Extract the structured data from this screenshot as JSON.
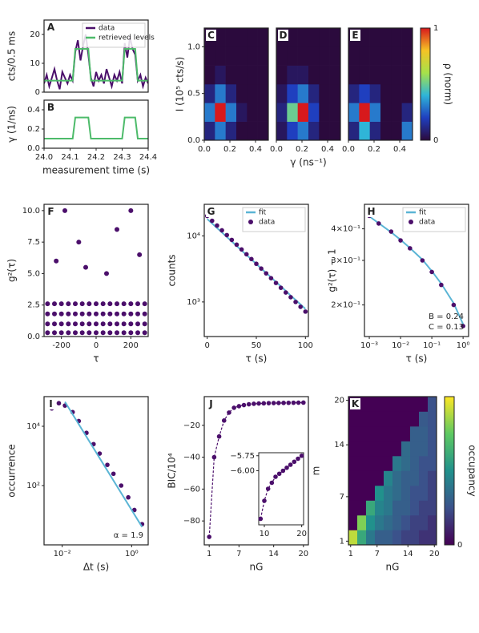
{
  "chart_data": [
    {
      "type": "line",
      "label": "A",
      "ylabel": "cts/0.5 ms",
      "xlim": [
        24.0,
        24.4
      ],
      "ylim": [
        0,
        25
      ],
      "yticks": [
        0,
        10,
        20
      ],
      "legend": true,
      "x": [
        24.0,
        24.01,
        24.02,
        24.03,
        24.04,
        24.05,
        24.06,
        24.07,
        24.08,
        24.09,
        24.1,
        24.11,
        24.12,
        24.13,
        24.14,
        24.15,
        24.16,
        24.17,
        24.18,
        24.19,
        24.2,
        24.21,
        24.22,
        24.23,
        24.24,
        24.25,
        24.26,
        24.27,
        24.28,
        24.29,
        24.3,
        24.31,
        24.32,
        24.33,
        24.34,
        24.35,
        24.36,
        24.37,
        24.38,
        24.39,
        24.4
      ],
      "series": [
        {
          "name": "data",
          "color": "#4b0f6b",
          "values": [
            3,
            6,
            2,
            5,
            8,
            4,
            1,
            7,
            5,
            3,
            6,
            4,
            14,
            18,
            11,
            16,
            20,
            13,
            5,
            2,
            7,
            4,
            6,
            3,
            8,
            5,
            2,
            6,
            4,
            7,
            3,
            17,
            12,
            19,
            15,
            13,
            4,
            6,
            2,
            5,
            3
          ]
        },
        {
          "name": "retrieved levels",
          "color": "#4dbb6a",
          "values": [
            4,
            4,
            4,
            4,
            4,
            4,
            4,
            4,
            4,
            4,
            4,
            4,
            15,
            15,
            15,
            15,
            15,
            15,
            4,
            4,
            4,
            4,
            4,
            4,
            4,
            4,
            4,
            4,
            4,
            4,
            4,
            15,
            15,
            15,
            15,
            15,
            4,
            4,
            4,
            4,
            4
          ]
        }
      ]
    },
    {
      "type": "line",
      "label": "B",
      "ylabel": "γ (1/ns)",
      "xlabel": "measurement time (s)",
      "xlim": [
        24.0,
        24.4
      ],
      "ylim": [
        0,
        0.5
      ],
      "xticks": [
        {
          "value": 24.0,
          "label": "24.0"
        },
        24.1,
        24.2,
        24.3,
        24.4
      ],
      "yticks": [
        {
          "value": 0,
          "label": "0.0"
        },
        0.2,
        0.4
      ],
      "x": [
        24.0,
        24.01,
        24.02,
        24.03,
        24.04,
        24.05,
        24.06,
        24.07,
        24.08,
        24.09,
        24.1,
        24.11,
        24.12,
        24.13,
        24.14,
        24.15,
        24.16,
        24.17,
        24.18,
        24.19,
        24.2,
        24.21,
        24.22,
        24.23,
        24.24,
        24.25,
        24.26,
        24.27,
        24.28,
        24.29,
        24.3,
        24.31,
        24.32,
        24.33,
        24.34,
        24.35,
        24.36,
        24.37,
        24.38,
        24.39,
        24.4
      ],
      "series": [
        {
          "color": "#4dbb6a",
          "values": [
            0.1,
            0.1,
            0.1,
            0.1,
            0.1,
            0.1,
            0.1,
            0.1,
            0.1,
            0.1,
            0.1,
            0.1,
            0.32,
            0.32,
            0.32,
            0.32,
            0.32,
            0.32,
            0.1,
            0.1,
            0.1,
            0.1,
            0.1,
            0.1,
            0.1,
            0.1,
            0.1,
            0.1,
            0.1,
            0.1,
            0.1,
            0.32,
            0.32,
            0.32,
            0.32,
            0.32,
            0.1,
            0.1,
            0.1,
            0.1,
            0.1
          ]
        }
      ]
    },
    {
      "type": "heatmap",
      "label": "C",
      "ylabel": "I (10⁵ cts/s)",
      "xlim": [
        0,
        0.5
      ],
      "ylim": [
        0,
        1.2
      ],
      "xticks": [
        {
          "value": 0,
          "label": "0.0"
        },
        0.2,
        0.4
      ],
      "yticks": [
        {
          "value": 0,
          "label": "0.0"
        },
        0.5,
        {
          "value": 1,
          "label": "1.0"
        }
      ],
      "colorscale": [
        "#2b0a3d",
        "#1f3fbf",
        "#2fb5d8",
        "#a6e24a",
        "#f5c325",
        "#d7191c"
      ],
      "z": [
        [
          0.1,
          0.3,
          0.1,
          0,
          0,
          0
        ],
        [
          0.3,
          1,
          0.3,
          0.05,
          0,
          0
        ],
        [
          0.1,
          0.3,
          0.1,
          0,
          0,
          0
        ],
        [
          0,
          0.05,
          0,
          0,
          0,
          0
        ],
        [
          0,
          0,
          0,
          0,
          0,
          0
        ],
        [
          0,
          0,
          0,
          0,
          0,
          0
        ]
      ]
    },
    {
      "type": "heatmap",
      "label": "D",
      "xlabel": "γ (ns⁻¹)",
      "xlim": [
        0,
        0.5
      ],
      "ylim": [
        0,
        1.2
      ],
      "xticks": [
        {
          "value": 0,
          "label": "0.0"
        },
        0.2,
        0.4
      ],
      "colorscale": [
        "#2b0a3d",
        "#1f3fbf",
        "#2fb5d8",
        "#a6e24a",
        "#f5c325",
        "#d7191c"
      ],
      "z": [
        [
          0.05,
          0.2,
          0.3,
          0.1,
          0,
          0
        ],
        [
          0.1,
          0.5,
          1,
          0.2,
          0,
          0
        ],
        [
          0.05,
          0.2,
          0.3,
          0.1,
          0,
          0
        ],
        [
          0,
          0.05,
          0.05,
          0,
          0,
          0
        ],
        [
          0,
          0,
          0,
          0,
          0,
          0
        ],
        [
          0,
          0,
          0,
          0,
          0,
          0
        ]
      ]
    },
    {
      "type": "heatmap",
      "label": "E",
      "xlim": [
        0,
        0.5
      ],
      "ylim": [
        0,
        1.2
      ],
      "xticks": [
        {
          "value": 0,
          "label": "0.0"
        },
        0.2,
        0.4
      ],
      "colorscale": [
        "#2b0a3d",
        "#1f3fbf",
        "#2fb5d8",
        "#a6e24a",
        "#f5c325",
        "#d7191c"
      ],
      "colorbar": {
        "label": "ρ (norm)",
        "ticks": [
          0,
          1
        ]
      },
      "z": [
        [
          0.1,
          0.4,
          0.1,
          0,
          0,
          0.3
        ],
        [
          0.3,
          1,
          0.3,
          0,
          0,
          0.1
        ],
        [
          0.1,
          0.2,
          0.1,
          0,
          0,
          0
        ],
        [
          0,
          0,
          0,
          0,
          0,
          0
        ],
        [
          0,
          0,
          0,
          0,
          0,
          0
        ],
        [
          0,
          0,
          0,
          0,
          0,
          0
        ]
      ]
    },
    {
      "type": "scatter",
      "label": "F",
      "xlabel": "τ",
      "ylabel": "g²(τ)",
      "xlim": [
        -300,
        300
      ],
      "ylim": [
        0,
        10.5
      ],
      "color": "#4b0f6b",
      "xticks": [
        -200,
        0,
        200
      ],
      "yticks": [
        {
          "value": 0,
          "label": "0.0"
        },
        2.5,
        {
          "value": 5,
          "label": "5.0"
        },
        7.5,
        {
          "value": 10,
          "label": "10.0"
        }
      ],
      "x": [
        -280,
        -240,
        -200,
        -160,
        -120,
        -80,
        -40,
        0,
        40,
        80,
        120,
        160,
        200,
        240,
        280,
        -280,
        -240,
        -200,
        -160,
        -120,
        -80,
        -40,
        0,
        40,
        80,
        120,
        160,
        200,
        240,
        280,
        -280,
        -240,
        -200,
        -160,
        -120,
        -80,
        -40,
        0,
        40,
        80,
        120,
        160,
        200,
        240,
        280,
        -280,
        -240,
        -200,
        -160,
        -120,
        -80,
        -40,
        0,
        40,
        80,
        120,
        160,
        200,
        240,
        280,
        -180,
        -100,
        -230,
        120,
        200,
        60,
        -60,
        250
      ],
      "values": [
        0.3,
        0.3,
        0.3,
        0.3,
        0.3,
        0.3,
        0.3,
        0.3,
        0.3,
        0.3,
        0.3,
        0.3,
        0.3,
        0.3,
        0.3,
        1,
        1,
        1,
        1,
        1,
        1,
        1,
        1,
        1,
        1,
        1,
        1,
        1,
        1,
        1,
        1.8,
        1.8,
        1.8,
        1.8,
        1.8,
        1.8,
        1.8,
        1.8,
        1.8,
        1.8,
        1.8,
        1.8,
        1.8,
        1.8,
        1.8,
        2.6,
        2.6,
        2.6,
        2.6,
        2.6,
        2.6,
        2.6,
        2.6,
        2.6,
        2.6,
        2.6,
        2.6,
        2.6,
        2.6,
        2.6,
        10,
        7.5,
        6,
        8.5,
        10,
        5,
        5.5,
        6.5
      ]
    },
    {
      "type": "line",
      "label": "G",
      "xlabel": "τ (s)",
      "ylabel": "counts",
      "xlim": [
        -3,
        103
      ],
      "ylim": [
        300,
        30000
      ],
      "ylog": true,
      "legend": true,
      "xticks": [
        0,
        50,
        100
      ],
      "yticks": [
        {
          "value": 1000,
          "label": "10³"
        },
        {
          "value": 10000,
          "label": "10⁴"
        }
      ],
      "x": [
        0,
        5,
        10,
        15,
        20,
        25,
        30,
        35,
        40,
        45,
        50,
        55,
        60,
        65,
        70,
        75,
        80,
        85,
        90,
        95,
        100
      ],
      "series": [
        {
          "name": "fit",
          "color": "#5bb5d5",
          "values": [
            18000,
            15390,
            13160,
            11250,
            9620,
            8230,
            7030,
            6010,
            5140,
            4400,
            3760,
            3210,
            2750,
            2350,
            2010,
            1720,
            1470,
            1250,
            1070,
            920,
            785
          ]
        },
        {
          "name": "data",
          "color": "#4b0f6b",
          "mode": "markers",
          "values": [
            20000,
            16930,
            14330,
            12130,
            10270,
            8690,
            7360,
            6230,
            5270,
            4460,
            3780,
            3200,
            2710,
            2290,
            1940,
            1640,
            1390,
            1180,
            1000,
            845,
            715
          ]
        }
      ]
    },
    {
      "type": "line",
      "label": "H",
      "xlabel": "τ (s)",
      "ylabel": "g²(τ) − 1",
      "xlim": [
        0.0007,
        1.5
      ],
      "ylim": [
        0.15,
        0.5
      ],
      "xlog": true,
      "ylog": true,
      "legend": true,
      "xticks": [
        {
          "value": 0.001,
          "label": "10⁻³"
        },
        {
          "value": 0.01,
          "label": "10⁻²"
        },
        {
          "value": 0.1,
          "label": "10⁻¹"
        },
        {
          "value": 1,
          "label": "10⁰"
        }
      ],
      "yticks": [
        {
          "value": 0.2,
          "label": "2×10⁻¹"
        },
        {
          "value": 0.3,
          "label": "3×10⁻¹"
        },
        {
          "value": 0.4,
          "label": "4×10⁻¹"
        }
      ],
      "annotations": [
        "B = 0.24",
        "C = 0.13"
      ],
      "x": [
        0.001,
        0.002,
        0.005,
        0.01,
        0.02,
        0.05,
        0.1,
        0.2,
        0.5,
        1
      ],
      "series": [
        {
          "name": "fit",
          "color": "#5bb5d5",
          "values": [
            0.448,
            0.421,
            0.388,
            0.362,
            0.336,
            0.302,
            0.272,
            0.243,
            0.203,
            0.168
          ]
        },
        {
          "name": "data",
          "color": "#4b0f6b",
          "mode": "markers",
          "values": [
            0.45,
            0.42,
            0.39,
            0.36,
            0.335,
            0.3,
            0.27,
            0.24,
            0.2,
            0.165
          ]
        }
      ]
    },
    {
      "type": "line",
      "label": "I",
      "xlabel": "Δt (s)",
      "ylabel": "occurrence",
      "xlim": [
        0.003,
        3
      ],
      "ylim": [
        1,
        100000
      ],
      "xlog": true,
      "ylog": true,
      "xticks": [
        {
          "value": 0.01,
          "label": "10⁻²"
        },
        {
          "value": 1,
          "label": "10⁰"
        }
      ],
      "yticks": [
        {
          "value": 100,
          "label": "10²"
        },
        {
          "value": 10000,
          "label": "10⁴"
        }
      ],
      "annotations": [
        "α = 1.9"
      ],
      "x": [
        0.005,
        0.008,
        0.012,
        0.02,
        0.03,
        0.05,
        0.08,
        0.12,
        0.2,
        0.3,
        0.5,
        0.8,
        1.2,
        2
      ],
      "series": [
        {
          "color": "#4b0f6b",
          "mode": "markers",
          "values": [
            40000,
            60000,
            50000,
            30000,
            15000,
            6000,
            2500,
            1200,
            500,
            250,
            100,
            40,
            15,
            5
          ]
        },
        {
          "color": "#5bb5d5",
          "x": [
            0.012,
            2
          ],
          "values": [
            66600,
            4
          ]
        }
      ]
    },
    {
      "type": "line",
      "label": "J",
      "xlabel": "nG",
      "ylabel": "BIC/10⁴",
      "xlim": [
        0,
        21
      ],
      "ylim": [
        -95,
        -2
      ],
      "xticks": [
        1,
        7,
        14,
        20
      ],
      "yticks": [
        {
          "value": -80,
          "label": "−80"
        },
        {
          "value": -60,
          "label": "−60"
        },
        {
          "value": -40,
          "label": "−40"
        },
        {
          "value": -20,
          "label": "−20"
        }
      ],
      "x": [
        1,
        2,
        3,
        4,
        5,
        6,
        7,
        8,
        9,
        10,
        11,
        12,
        13,
        14,
        15,
        16,
        17,
        18,
        19,
        20
      ],
      "series": [
        {
          "color": "#4b0f6b",
          "mode": "both",
          "values": [
            -90,
            -40,
            -27,
            -17,
            -12,
            -9,
            -8,
            -7.3,
            -6.8,
            -6.5,
            -6.3,
            -6.2,
            -6.1,
            -6.05,
            -6.0,
            -5.95,
            -5.9,
            -5.85,
            -5.8,
            -5.75
          ]
        }
      ],
      "inset": {
        "xlim": [
          8.5,
          20.5
        ],
        "ylim": [
          -6.9,
          -5.7
        ],
        "xticks": [
          10,
          20
        ],
        "yticks": [
          {
            "value": -6,
            "label": "−6.00"
          },
          {
            "value": -5.75,
            "label": "−5.75"
          }
        ]
      }
    },
    {
      "type": "heatmap",
      "label": "K",
      "xlabel": "nG",
      "ylabel": "m",
      "xlim": [
        0.5,
        20.5
      ],
      "ylim": [
        0.5,
        20.5
      ],
      "xticks": [
        1,
        7,
        14,
        20
      ],
      "yticks": [
        1,
        7,
        14,
        20
      ],
      "colorscale": [
        "#440154",
        "#3b528b",
        "#21918c",
        "#5ec962",
        "#fde725"
      ],
      "colorbar": {
        "label": "occupancy",
        "ticks": [
          0
        ]
      },
      "z": [
        [
          0.9,
          0.6,
          0.4,
          0.3,
          0.3,
          0.25,
          0.2,
          0.2,
          0.15,
          0.15
        ],
        [
          0,
          0.8,
          0.5,
          0.4,
          0.35,
          0.3,
          0.25,
          0.2,
          0.2,
          0.15
        ],
        [
          0,
          0,
          0.6,
          0.45,
          0.4,
          0.3,
          0.3,
          0.25,
          0.2,
          0.2
        ],
        [
          0,
          0,
          0,
          0.5,
          0.4,
          0.35,
          0.3,
          0.25,
          0.25,
          0.2
        ],
        [
          0,
          0,
          0,
          0,
          0.45,
          0.35,
          0.3,
          0.3,
          0.25,
          0.2
        ],
        [
          0,
          0,
          0,
          0,
          0,
          0.4,
          0.35,
          0.3,
          0.25,
          0.25
        ],
        [
          0,
          0,
          0,
          0,
          0,
          0,
          0.35,
          0.3,
          0.3,
          0.25
        ],
        [
          0,
          0,
          0,
          0,
          0,
          0,
          0,
          0.3,
          0.3,
          0.25
        ],
        [
          0,
          0,
          0,
          0,
          0,
          0,
          0,
          0,
          0.28,
          0.25
        ],
        [
          0,
          0,
          0,
          0,
          0,
          0,
          0,
          0,
          0,
          0.25
        ]
      ]
    }
  ]
}
